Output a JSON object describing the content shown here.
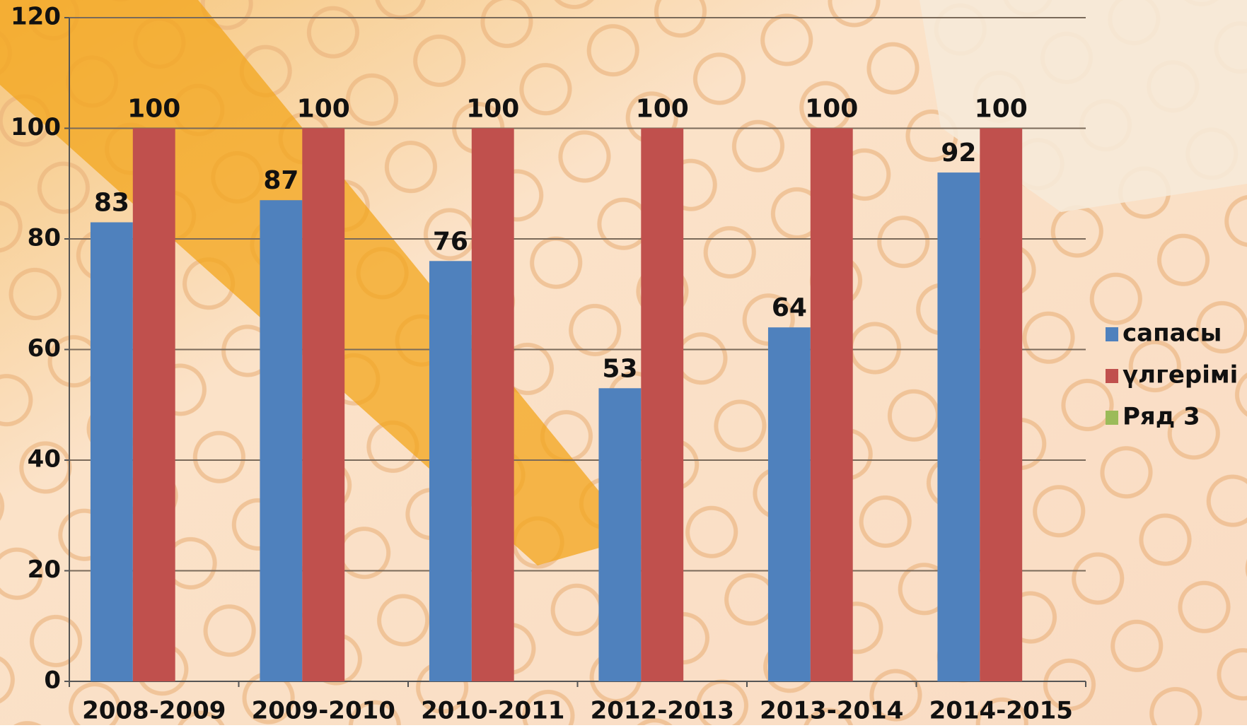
{
  "chart_data": {
    "type": "bar",
    "categories": [
      "2008-2009",
      "2009-2010",
      "2010-2011",
      "2012-2013",
      "2013-2014",
      "2014-2015"
    ],
    "series": [
      {
        "name": "сапасы",
        "color": "#4f81bd",
        "values": [
          83,
          87,
          76,
          53,
          64,
          92
        ]
      },
      {
        "name": "үлгерімі",
        "color": "#c0504d",
        "values": [
          100,
          100,
          100,
          100,
          100,
          100
        ]
      },
      {
        "name": "Ряд 3",
        "color": "#9bbb59",
        "values": [
          null,
          null,
          null,
          null,
          null,
          null
        ]
      }
    ],
    "ylim": [
      0,
      120
    ],
    "yticks": [
      0,
      20,
      40,
      60,
      80,
      100,
      120
    ],
    "grid": true,
    "legend": "right"
  }
}
